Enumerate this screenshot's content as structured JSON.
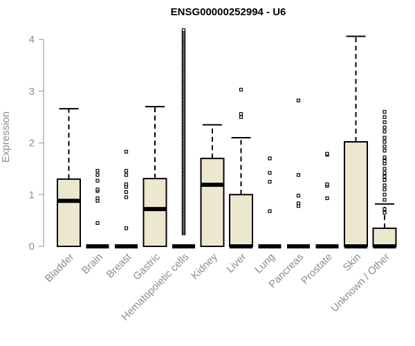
{
  "chart_data": {
    "type": "box",
    "title": "ENSG00000252994 - U6",
    "xlabel": "",
    "ylabel": "Expression",
    "ylim": [
      0,
      4.2
    ],
    "yticks": [
      0,
      1,
      2,
      3,
      4
    ],
    "box_fill": "#ece7cf",
    "stroke_color": "#000000",
    "axis_color": "#8c8c8c",
    "categories": [
      "Bladder",
      "Brain",
      "Breast",
      "Gastric",
      "Hematopoietic cells",
      "Kidney",
      "Liver",
      "Lung",
      "Pancreas",
      "Prostate",
      "Skin",
      "Unknown / Other"
    ],
    "boxes": [
      {
        "category": "Bladder",
        "min": 0,
        "q1": 0,
        "median": 0.88,
        "q3": 1.3,
        "whisker_high": 2.66,
        "outliers": []
      },
      {
        "category": "Brain",
        "min": 0,
        "q1": 0,
        "median": 0,
        "q3": 0,
        "whisker_high": 0,
        "outliers": [
          0.45,
          0.88,
          0.93,
          1.07,
          1.1,
          1.27,
          1.38,
          1.46
        ]
      },
      {
        "category": "Breast",
        "min": 0,
        "q1": 0,
        "median": 0,
        "q3": 0,
        "whisker_high": 0,
        "outliers": [
          0.35,
          0.95,
          1.05,
          1.15,
          1.2,
          1.38,
          1.46,
          1.83
        ]
      },
      {
        "category": "Gastric",
        "min": 0,
        "q1": 0,
        "median": 0.72,
        "q3": 1.31,
        "whisker_high": 2.7,
        "outliers": []
      },
      {
        "category": "Hematopoietic cells",
        "min": 0,
        "q1": 0,
        "median": 0,
        "q3": 0,
        "whisker_high": 0,
        "outliers_range": [
          0.25,
          4.18
        ]
      },
      {
        "category": "Kidney",
        "min": 0,
        "q1": 0,
        "median": 1.19,
        "q3": 1.7,
        "whisker_high": 2.35,
        "outliers": []
      },
      {
        "category": "Liver",
        "min": 0,
        "q1": 0,
        "median": 0,
        "q3": 1.0,
        "whisker_high": 2.1,
        "outliers": [
          2.5,
          2.56,
          3.03
        ]
      },
      {
        "category": "Lung",
        "min": 0,
        "q1": 0,
        "median": 0,
        "q3": 0,
        "whisker_high": 0,
        "outliers": [
          0.68,
          1.25,
          1.42,
          1.7
        ]
      },
      {
        "category": "Pancreas",
        "min": 0,
        "q1": 0,
        "median": 0,
        "q3": 0,
        "whisker_high": 0,
        "outliers": [
          0.78,
          0.83,
          0.98,
          1.38,
          2.82
        ]
      },
      {
        "category": "Prostate",
        "min": 0,
        "q1": 0,
        "median": 0,
        "q3": 0,
        "whisker_high": 0,
        "outliers": [
          0.93,
          1.17,
          1.2,
          1.77,
          1.79
        ]
      },
      {
        "category": "Skin",
        "min": 0,
        "q1": 0,
        "median": 0,
        "q3": 2.02,
        "whisker_high": 4.06,
        "outliers": []
      },
      {
        "category": "Unknown / Other",
        "min": 0,
        "q1": 0,
        "median": 0,
        "q3": 0.35,
        "whisker_high": 0.82,
        "outliers": [
          0.65,
          0.72,
          0.9,
          1.0,
          1.1,
          1.18,
          1.28,
          1.35,
          1.42,
          1.5,
          1.6,
          1.65,
          1.72,
          1.85,
          1.93,
          2.02,
          2.1,
          2.22,
          2.3,
          2.4,
          2.5,
          2.6
        ]
      }
    ]
  }
}
